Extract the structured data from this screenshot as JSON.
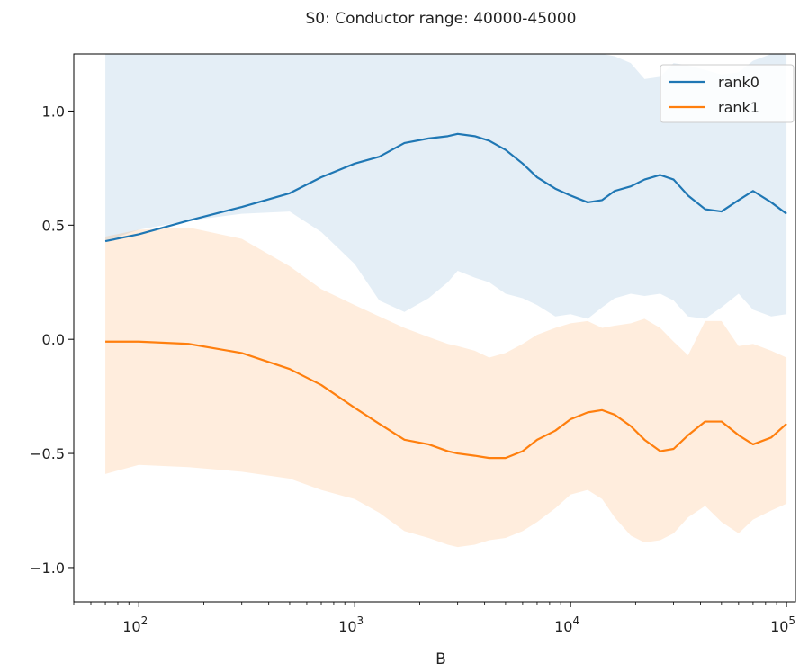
{
  "colors": {
    "rank0": "#1f77b4",
    "rank1": "#ff7f0e",
    "rank0_band": "#1f77b4",
    "rank1_band": "#ff7f0e",
    "axis": "#000000",
    "background": "#ffffff"
  },
  "chart_data": {
    "type": "line",
    "title": "S0: Conductor range: 40000-45000",
    "xlabel": "B",
    "ylabel": "",
    "xscale": "log",
    "xlim": [
      50,
      110000
    ],
    "ylim": [
      -1.15,
      1.25
    ],
    "grid": false,
    "legend_position": "top-right",
    "x_ticks": [
      {
        "value": 100,
        "label_base": "10",
        "label_exp": "2"
      },
      {
        "value": 1000,
        "label_base": "10",
        "label_exp": "3"
      },
      {
        "value": 10000,
        "label_base": "10",
        "label_exp": "4"
      },
      {
        "value": 100000,
        "label_base": "10",
        "label_exp": "5"
      }
    ],
    "y_ticks": [
      {
        "value": 1.0,
        "label": "1.0"
      },
      {
        "value": 0.5,
        "label": "0.5"
      },
      {
        "value": 0.0,
        "label": "0.0"
      },
      {
        "value": -0.5,
        "label": "−0.5"
      },
      {
        "value": -1.0,
        "label": "−1.0"
      }
    ],
    "x": [
      70,
      100,
      170,
      300,
      500,
      700,
      1000,
      1300,
      1700,
      2200,
      2700,
      3000,
      3600,
      4200,
      5000,
      6000,
      7000,
      8500,
      10000,
      12000,
      14000,
      16000,
      19000,
      22000,
      26000,
      30000,
      35000,
      42000,
      50000,
      60000,
      70000,
      85000,
      100000
    ],
    "series": [
      {
        "name": "rank0",
        "color_key": "rank0",
        "values": [
          0.43,
          0.46,
          0.52,
          0.58,
          0.64,
          0.71,
          0.77,
          0.8,
          0.86,
          0.88,
          0.89,
          0.9,
          0.89,
          0.87,
          0.83,
          0.77,
          0.71,
          0.66,
          0.63,
          0.6,
          0.61,
          0.65,
          0.67,
          0.7,
          0.72,
          0.7,
          0.63,
          0.57,
          0.56,
          0.61,
          0.65,
          0.6,
          0.55
        ],
        "band_upper": [
          1.25,
          1.25,
          1.25,
          1.25,
          1.25,
          1.25,
          1.25,
          1.25,
          1.25,
          1.25,
          1.25,
          1.25,
          1.25,
          1.25,
          1.25,
          1.25,
          1.25,
          1.25,
          1.25,
          1.25,
          1.25,
          1.24,
          1.21,
          1.14,
          1.15,
          1.21,
          1.2,
          1.18,
          1.16,
          1.17,
          1.22,
          1.25,
          1.25
        ],
        "band_lower": [
          0.43,
          0.48,
          0.52,
          0.55,
          0.56,
          0.47,
          0.33,
          0.17,
          0.12,
          0.18,
          0.25,
          0.3,
          0.27,
          0.25,
          0.2,
          0.18,
          0.15,
          0.1,
          0.11,
          0.09,
          0.14,
          0.18,
          0.2,
          0.19,
          0.2,
          0.17,
          0.1,
          0.09,
          0.14,
          0.2,
          0.13,
          0.1,
          0.11
        ]
      },
      {
        "name": "rank1",
        "color_key": "rank1",
        "values": [
          -0.01,
          -0.01,
          -0.02,
          -0.06,
          -0.13,
          -0.2,
          -0.3,
          -0.37,
          -0.44,
          -0.46,
          -0.49,
          -0.5,
          -0.51,
          -0.52,
          -0.52,
          -0.49,
          -0.44,
          -0.4,
          -0.35,
          -0.32,
          -0.31,
          -0.33,
          -0.38,
          -0.44,
          -0.49,
          -0.48,
          -0.42,
          -0.36,
          -0.36,
          -0.42,
          -0.46,
          -0.43,
          -0.37
        ],
        "band_upper": [
          0.45,
          0.48,
          0.49,
          0.44,
          0.32,
          0.22,
          0.15,
          0.1,
          0.05,
          0.01,
          -0.02,
          -0.03,
          -0.05,
          -0.08,
          -0.06,
          -0.02,
          0.02,
          0.05,
          0.07,
          0.08,
          0.05,
          0.06,
          0.07,
          0.09,
          0.05,
          -0.01,
          -0.07,
          0.08,
          0.08,
          -0.03,
          -0.02,
          -0.05,
          -0.08
        ],
        "band_lower": [
          -0.59,
          -0.55,
          -0.56,
          -0.58,
          -0.61,
          -0.66,
          -0.7,
          -0.76,
          -0.84,
          -0.87,
          -0.9,
          -0.91,
          -0.9,
          -0.88,
          -0.87,
          -0.84,
          -0.8,
          -0.74,
          -0.68,
          -0.66,
          -0.7,
          -0.78,
          -0.86,
          -0.89,
          -0.88,
          -0.85,
          -0.78,
          -0.73,
          -0.8,
          -0.85,
          -0.79,
          -0.75,
          -0.72
        ]
      }
    ]
  }
}
